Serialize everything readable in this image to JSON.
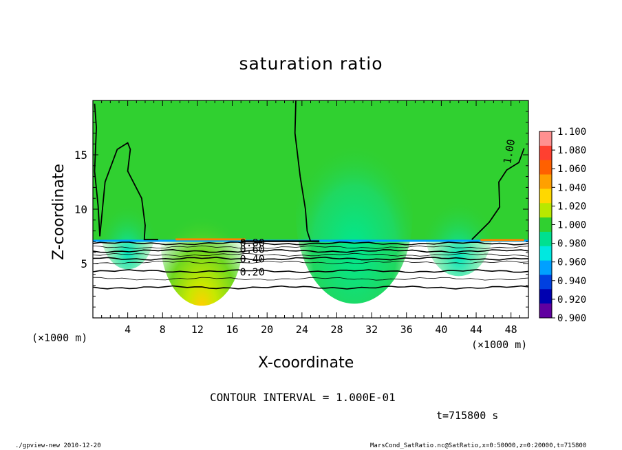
{
  "chart_data": {
    "type": "heatmap",
    "title": "saturation ratio",
    "xlabel": "X-coordinate",
    "ylabel": "Z-coordinate",
    "x_unit_label": "(×1000 m)",
    "xlim": [
      0,
      50
    ],
    "ylim": [
      0,
      20
    ],
    "xticks": [
      4,
      8,
      12,
      16,
      20,
      24,
      28,
      32,
      36,
      40,
      44,
      48
    ],
    "yticks": [
      5,
      10,
      15
    ],
    "colorbar": {
      "levels": [
        "1.100",
        "1.080",
        "1.060",
        "1.040",
        "1.020",
        "1.000",
        "0.980",
        "0.960",
        "0.940",
        "0.920",
        "0.900"
      ],
      "colors": [
        "#ff9090",
        "#ff4030",
        "#ff6000",
        "#ffa000",
        "#ffd800",
        "#b8e800",
        "#30d030",
        "#00e090",
        "#00e8e0",
        "#00a0ff",
        "#0040e0",
        "#0000b0",
        "#6000a0"
      ]
    },
    "contour_labels": [
      {
        "text": "0.20",
        "x": 18.3,
        "z": 4.2
      },
      {
        "text": "0.40",
        "x": 18.3,
        "z": 5.4
      },
      {
        "text": "0.60",
        "x": 18.3,
        "z": 6.3
      },
      {
        "text": "0.80",
        "x": 18.3,
        "z": 6.9
      },
      {
        "text": "1.00",
        "x": 47.8,
        "z": 15.3
      }
    ],
    "contour_interval": "CONTOUR INTERVAL = 1.000E-01",
    "time": "t=715800 s"
  },
  "footer": {
    "left": "./gpview-new  2010-12-20",
    "right": "MarsCond_SatRatio.nc@SatRatio,x=0:50000,z=0:20000,t=715800"
  }
}
